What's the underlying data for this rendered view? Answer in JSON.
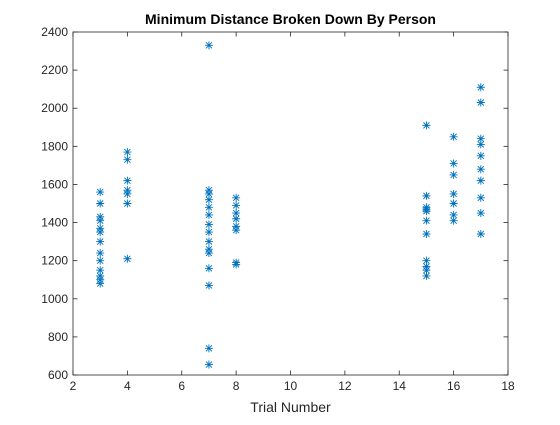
{
  "chart_data": {
    "type": "scatter",
    "title": "Minimum Distance Broken Down By Person",
    "xlabel": "Trial Number",
    "ylabel": "",
    "xlim": [
      2,
      18
    ],
    "ylim": [
      600,
      2400
    ],
    "x_ticks": [
      2,
      4,
      6,
      8,
      10,
      12,
      14,
      16,
      18
    ],
    "y_ticks": [
      600,
      800,
      1000,
      1200,
      1400,
      1600,
      1800,
      2000,
      2200,
      2400
    ],
    "marker": "asterisk",
    "grid": false,
    "series": [
      {
        "color": "#0072BD",
        "points": [
          [
            3,
            1560
          ],
          [
            3,
            1500
          ],
          [
            3,
            1430
          ],
          [
            3,
            1410
          ],
          [
            3,
            1370
          ],
          [
            3,
            1350
          ],
          [
            3,
            1300
          ],
          [
            3,
            1240
          ],
          [
            3,
            1200
          ],
          [
            3,
            1150
          ],
          [
            3,
            1120
          ],
          [
            3,
            1100
          ],
          [
            3,
            1080
          ],
          [
            4,
            1770
          ],
          [
            4,
            1730
          ],
          [
            4,
            1620
          ],
          [
            4,
            1570
          ],
          [
            4,
            1550
          ],
          [
            4,
            1500
          ],
          [
            4,
            1210
          ],
          [
            7,
            2330
          ],
          [
            7,
            1570
          ],
          [
            7,
            1550
          ],
          [
            7,
            1520
          ],
          [
            7,
            1480
          ],
          [
            7,
            1440
          ],
          [
            7,
            1390
          ],
          [
            7,
            1350
          ],
          [
            7,
            1300
          ],
          [
            7,
            1260
          ],
          [
            7,
            1240
          ],
          [
            7,
            1160
          ],
          [
            7,
            1070
          ],
          [
            7,
            740
          ],
          [
            7,
            655
          ],
          [
            8,
            1530
          ],
          [
            8,
            1490
          ],
          [
            8,
            1450
          ],
          [
            8,
            1420
          ],
          [
            8,
            1380
          ],
          [
            8,
            1360
          ],
          [
            8,
            1190
          ],
          [
            8,
            1180
          ],
          [
            15,
            1910
          ],
          [
            15,
            1540
          ],
          [
            15,
            1480
          ],
          [
            15,
            1470
          ],
          [
            15,
            1460
          ],
          [
            15,
            1410
          ],
          [
            15,
            1340
          ],
          [
            15,
            1200
          ],
          [
            15,
            1170
          ],
          [
            15,
            1150
          ],
          [
            15,
            1120
          ],
          [
            16,
            1850
          ],
          [
            16,
            1710
          ],
          [
            16,
            1650
          ],
          [
            16,
            1550
          ],
          [
            16,
            1500
          ],
          [
            16,
            1440
          ],
          [
            16,
            1410
          ],
          [
            17,
            2110
          ],
          [
            17,
            2030
          ],
          [
            17,
            1840
          ],
          [
            17,
            1810
          ],
          [
            17,
            1750
          ],
          [
            17,
            1680
          ],
          [
            17,
            1620
          ],
          [
            17,
            1530
          ],
          [
            17,
            1450
          ],
          [
            17,
            1340
          ]
        ]
      }
    ]
  }
}
